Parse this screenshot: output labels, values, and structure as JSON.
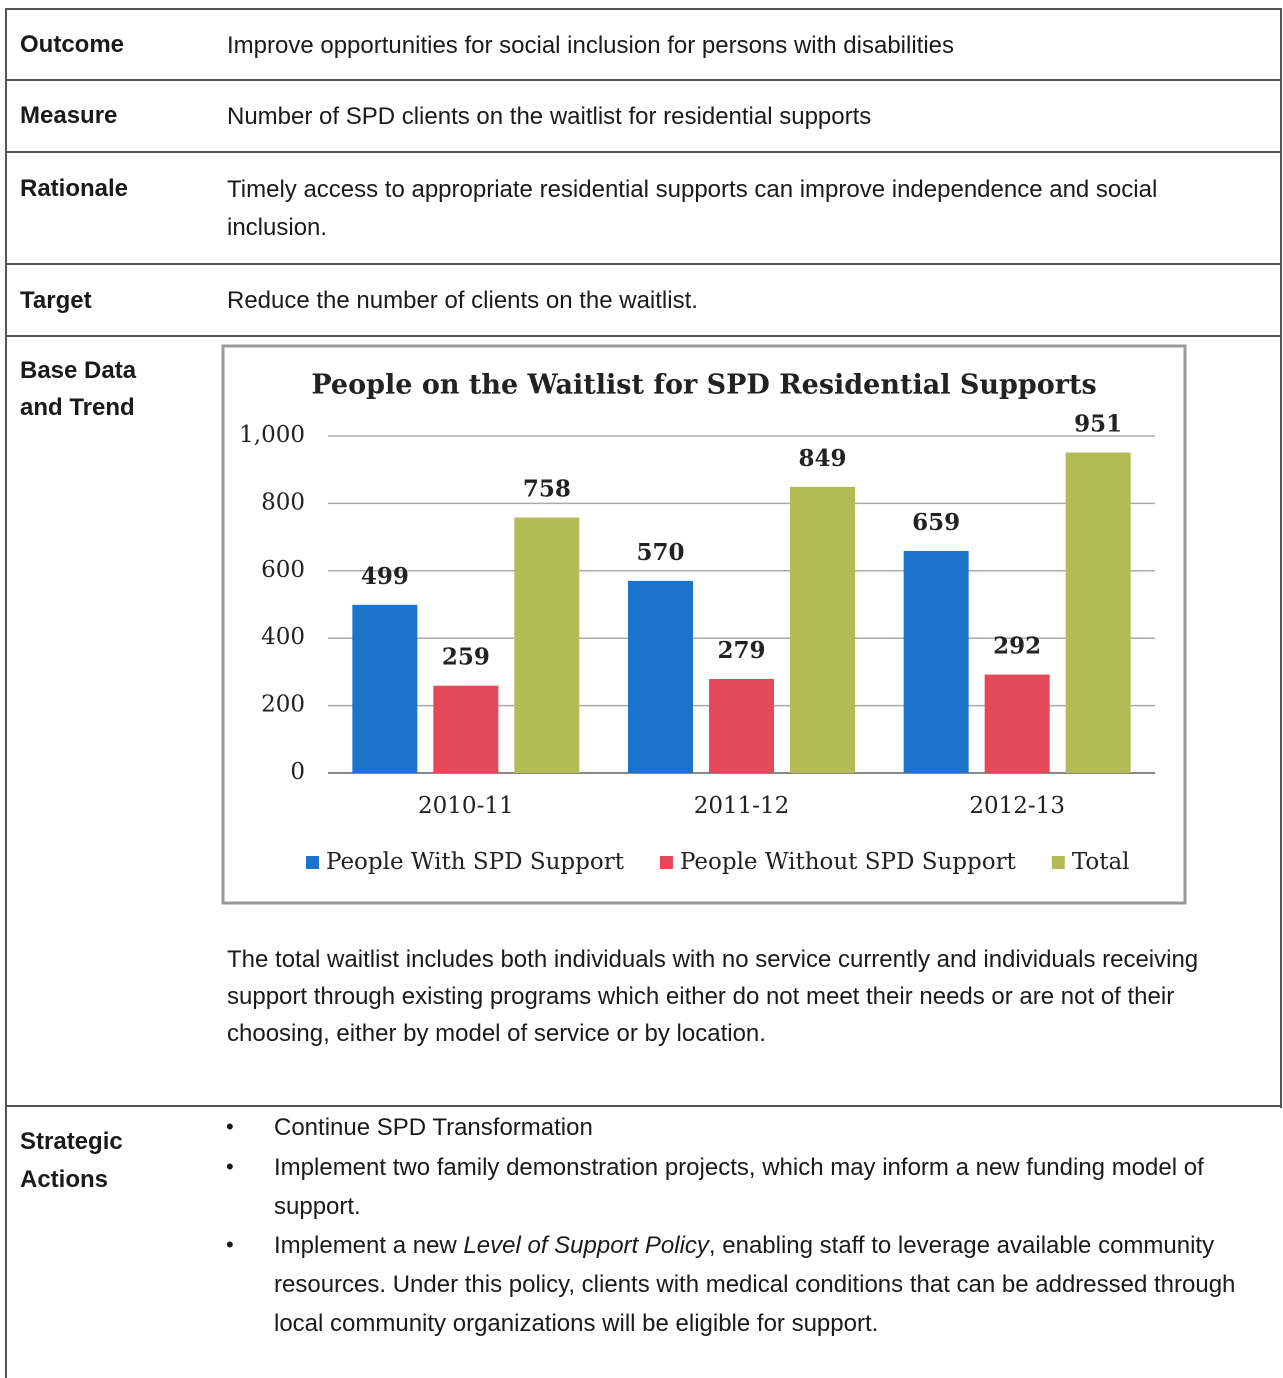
{
  "rows": [
    {
      "label": "Outcome",
      "text": "Improve opportunities for social inclusion for persons with disabilities"
    },
    {
      "label": "Measure",
      "text": "Number of SPD clients on the waitlist for residential supports"
    },
    {
      "label": "Rationale",
      "text": "Timely access to appropriate residential supports can improve independence and social inclusion."
    },
    {
      "label": "Target",
      "text": "Reduce the number of clients on the waitlist."
    },
    {
      "label": "Base Data and Trend",
      "text": "The total waitlist includes both individuals with no service currently and individuals receiving support through existing programs which either do not meet their needs or are not of their choosing, either by model of service or by location."
    },
    {
      "label": "Strategic Actions"
    }
  ],
  "actions": [
    {
      "text": "Continue SPD Transformation"
    },
    {
      "text": "Implement two family demonstration projects, which may inform a new funding model of support."
    },
    {
      "before": "Implement a new ",
      "italic": "Level of Support Policy",
      "after": ", enabling staff to leverage available community resources. Under this policy, clients with medical conditions that can be addressed through local community organizations will be eligible for support."
    }
  ],
  "chart_data": {
    "type": "bar",
    "title": "People on the Waitlist for SPD Residential Supports",
    "categories": [
      "2010-11",
      "2011-12",
      "2012-13"
    ],
    "series": [
      {
        "name": "People With SPD Support",
        "color": "#1b74c9",
        "values": [
          499,
          570,
          659
        ]
      },
      {
        "name": "People Without SPD Support",
        "color": "#e54858",
        "values": [
          259,
          279,
          292
        ]
      },
      {
        "name": "Total",
        "color": "#b3bb56",
        "values": [
          758,
          849,
          951
        ]
      }
    ],
    "ylim": [
      0,
      1000
    ],
    "yticks": [
      0,
      200,
      400,
      600,
      800,
      {
        "value": 1000,
        "label": "1,000"
      }
    ],
    "grid": true,
    "legend": "bottom"
  }
}
